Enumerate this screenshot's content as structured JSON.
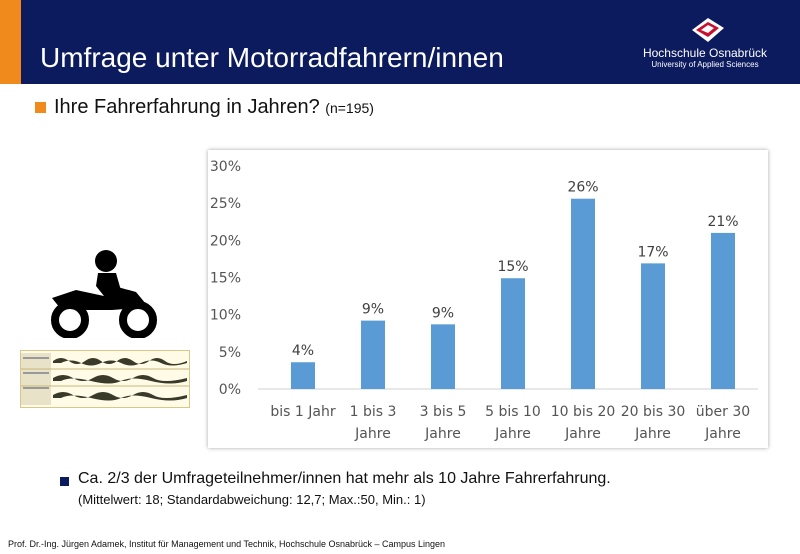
{
  "header": {
    "title": "Umfrage unter Motorradfahrern/innen",
    "logo_name": "Hochschule Osnabrück",
    "logo_sub": "University of Applied Sciences"
  },
  "question": {
    "text": "Ihre Fahrerfahrung in Jahren?",
    "n": "(n=195)"
  },
  "chart_data": {
    "type": "bar",
    "categories": [
      [
        "bis 1 Jahr"
      ],
      [
        "1 bis 3",
        "Jahre"
      ],
      [
        "3 bis 5",
        "Jahre"
      ],
      [
        "5 bis 10",
        "Jahre"
      ],
      [
        "10 bis 20",
        "Jahre"
      ],
      [
        "20 bis 30",
        "Jahre"
      ],
      [
        "über 30",
        "Jahre"
      ]
    ],
    "values": [
      3.6,
      9.2,
      8.7,
      14.9,
      25.6,
      16.9,
      21.0
    ],
    "data_labels": [
      "4%",
      "9%",
      "9%",
      "15%",
      "26%",
      "17%",
      "21%"
    ],
    "ylim": [
      0,
      30
    ],
    "yticks": [
      "0%",
      "5%",
      "10%",
      "15%",
      "20%",
      "25%",
      "30%"
    ],
    "grid": false,
    "bar_color": "#5b9bd5"
  },
  "notes": {
    "line1": "Ca. 2/3 der Umfrageteilnehmer/innen hat mehr als 10 Jahre Fahrerfahrung.",
    "line2": "(Mittelwert: 18; Standardabweichung:  12,7; Max.:50, Min.: 1)"
  },
  "footer": "Prof. Dr.-Ing. Jürgen Adamek,  Institut für Management und Technik, Hochschule Osnabrück – Campus Lingen",
  "colors": {
    "header": "#0c1a5e",
    "accent": "#f08a1c"
  },
  "icons": [
    "motorcycle-icon",
    "audio-waveform-image",
    "university-logo-icon"
  ]
}
